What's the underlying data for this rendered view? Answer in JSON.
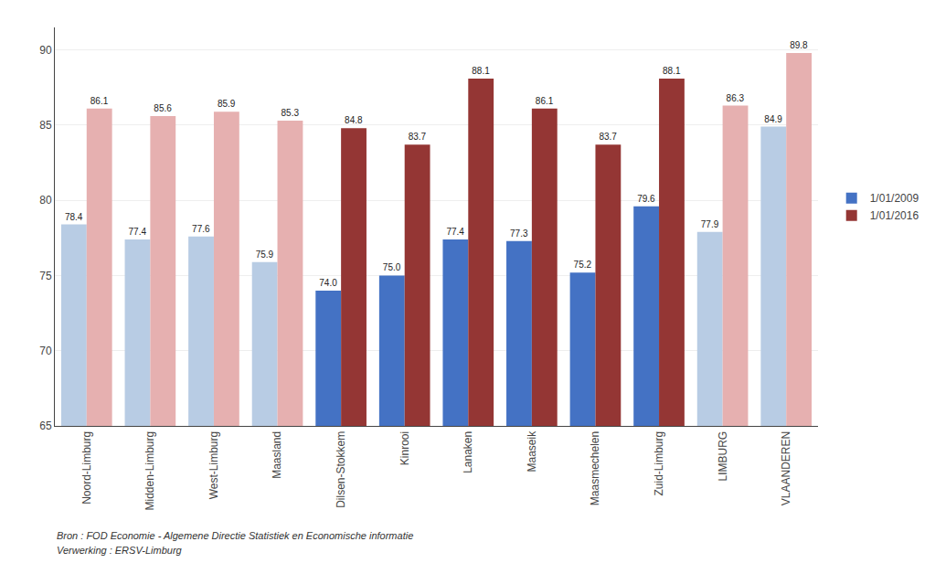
{
  "chart_data": {
    "type": "bar",
    "categories": [
      "Noord-Limburg",
      "Midden-Limburg",
      "West-Limburg",
      "Maasland",
      "Dilsen-Stokkem",
      "Kinrooi",
      "Lanaken",
      "Maaseik",
      "Maasmechelen",
      "Zuid-Limburg",
      "LIMBURG",
      "VLAANDEREN"
    ],
    "series": [
      {
        "name": "1/01/2009",
        "color": "#4472C4",
        "colors": [
          "#B8CCE4",
          "#B8CCE4",
          "#B8CCE4",
          "#B8CCE4",
          "#4472C4",
          "#4472C4",
          "#4472C4",
          "#4472C4",
          "#4472C4",
          "#4472C4",
          "#B8CCE4",
          "#B8CCE4"
        ],
        "values": [
          78.4,
          77.4,
          77.6,
          75.9,
          74.0,
          75.0,
          77.4,
          77.3,
          75.2,
          79.6,
          77.9,
          84.9
        ],
        "value_labels": [
          "78.4",
          "77.4",
          "77.6",
          "75.9",
          "74.0",
          "75.0",
          "77.4",
          "77.3",
          "75.2",
          "79.6",
          "77.9",
          "84.9"
        ]
      },
      {
        "name": "1/01/2016",
        "color": "#943634",
        "colors": [
          "#E6B0B0",
          "#E6B0B0",
          "#E6B0B0",
          "#E6B0B0",
          "#943634",
          "#943634",
          "#943634",
          "#943634",
          "#943634",
          "#943634",
          "#E6B0B0",
          "#E6B0B0"
        ],
        "values": [
          86.1,
          85.6,
          85.9,
          85.3,
          84.8,
          83.7,
          88.1,
          86.1,
          83.7,
          88.1,
          86.3,
          89.8
        ],
        "value_labels": [
          "86.1",
          "85.6",
          "85.9",
          "85.3",
          "84.8",
          "83.7",
          "88.1",
          "86.1",
          "83.7",
          "88.1",
          "86.3",
          "89.8"
        ]
      }
    ],
    "ylim": [
      65,
      91.5
    ],
    "yticks": [
      65,
      70,
      75,
      80,
      85,
      90
    ],
    "grid": true,
    "legend": "right",
    "data_labels": true,
    "annotations": [
      "Bron : FOD Economie - Algemene Directie Statistiek en Economische informatie",
      "Verwerking : ERSV-Limburg"
    ]
  }
}
